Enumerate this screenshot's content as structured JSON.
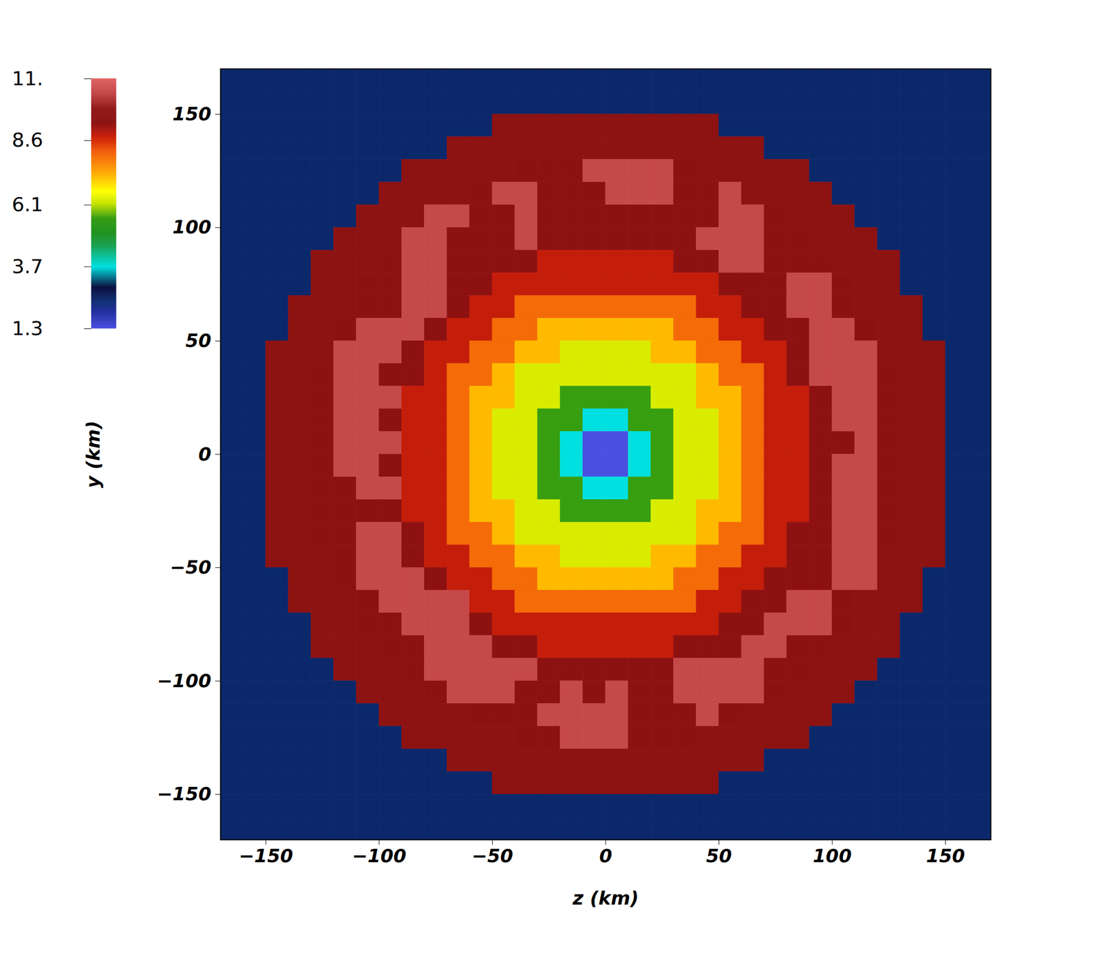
{
  "chart_data": {
    "type": "heatmap",
    "x_label": "z (km)",
    "y_label": "y (km)",
    "xlim": [
      -170,
      170
    ],
    "ylim": [
      -170,
      170
    ],
    "xticks": [
      -150,
      -100,
      -50,
      0,
      50,
      100,
      150
    ],
    "yticks": [
      -150,
      -100,
      -50,
      0,
      50,
      100,
      150
    ],
    "x": [
      -165,
      -155,
      -145,
      -135,
      -125,
      -115,
      -105,
      -95,
      -85,
      -75,
      -65,
      -55,
      -45,
      -35,
      -25,
      -15,
      -5,
      5,
      15,
      25,
      35,
      45,
      55,
      65,
      75,
      85,
      95,
      105,
      115,
      125,
      135,
      145,
      155,
      165
    ],
    "y": [
      165,
      155,
      145,
      135,
      125,
      115,
      105,
      95,
      85,
      75,
      65,
      55,
      45,
      35,
      25,
      15,
      5,
      -5,
      -15,
      -25,
      -35,
      -45,
      -55,
      -65,
      -75,
      -85,
      -95,
      -105,
      -115,
      -125,
      -135,
      -145,
      -155,
      -165
    ],
    "values": [
      [
        2.4,
        2.4,
        2.4,
        2.4,
        2.4,
        2.4,
        2.4,
        2.4,
        2.4,
        2.4,
        2.4,
        2.4,
        2.4,
        2.4,
        2.4,
        2.4,
        2.4,
        2.4,
        2.4,
        2.4,
        2.4,
        2.4,
        2.4,
        2.4,
        2.4,
        2.4,
        2.4,
        2.4,
        2.4,
        2.4,
        2.4,
        2.4,
        2.4,
        2.4
      ],
      [
        2.4,
        2.4,
        2.4,
        2.4,
        2.4,
        2.4,
        2.4,
        2.4,
        2.4,
        2.4,
        2.4,
        2.4,
        2.4,
        2.4,
        2.4,
        2.4,
        2.4,
        2.4,
        2.4,
        2.4,
        2.4,
        2.4,
        2.4,
        2.4,
        2.4,
        2.4,
        2.4,
        2.4,
        2.4,
        2.4,
        2.4,
        2.4,
        2.4,
        2.4
      ],
      [
        2.4,
        2.4,
        2.4,
        2.4,
        2.4,
        2.4,
        2.4,
        2.4,
        2.4,
        2.4,
        2.4,
        2.4,
        9.6,
        9.6,
        9.6,
        9.6,
        9.6,
        9.6,
        9.6,
        9.6,
        9.6,
        9.6,
        2.4,
        2.4,
        2.4,
        2.4,
        2.4,
        2.4,
        2.4,
        2.4,
        2.4,
        2.4,
        2.4,
        2.4
      ],
      [
        2.4,
        2.4,
        2.4,
        2.4,
        2.4,
        2.4,
        2.4,
        2.4,
        2.4,
        2.4,
        9.6,
        9.6,
        9.6,
        9.6,
        9.6,
        9.6,
        9.6,
        9.6,
        9.6,
        9.6,
        9.6,
        9.6,
        9.6,
        9.6,
        2.4,
        2.4,
        2.4,
        2.4,
        2.4,
        2.4,
        2.4,
        2.4,
        2.4,
        2.4
      ],
      [
        2.4,
        2.4,
        2.4,
        2.4,
        2.4,
        2.4,
        2.4,
        2.4,
        9.6,
        9.6,
        9.6,
        9.6,
        9.6,
        9.5,
        9.5,
        9.5,
        10.5,
        10.5,
        10.5,
        10.5,
        9.5,
        9.6,
        9.6,
        9.6,
        9.6,
        9.6,
        2.4,
        2.4,
        2.4,
        2.4,
        2.4,
        2.4,
        2.4,
        2.4
      ],
      [
        2.4,
        2.4,
        2.4,
        2.4,
        2.4,
        2.4,
        2.4,
        9.6,
        9.6,
        9.6,
        9.6,
        9.5,
        10.5,
        10.5,
        9.5,
        9.5,
        9.5,
        10.5,
        10.5,
        10.5,
        9.5,
        9.5,
        10.5,
        9.6,
        9.6,
        9.6,
        9.6,
        2.4,
        2.4,
        2.4,
        2.4,
        2.4,
        2.4,
        2.4
      ],
      [
        2.4,
        2.4,
        2.4,
        2.4,
        2.4,
        2.4,
        9.6,
        9.6,
        9.6,
        10.5,
        10.5,
        9.5,
        9.5,
        10.5,
        9.5,
        9.5,
        9.5,
        9.5,
        9.5,
        9.5,
        9.5,
        9.5,
        10.5,
        10.5,
        9.5,
        9.6,
        9.6,
        9.6,
        2.4,
        2.4,
        2.4,
        2.4,
        2.4,
        2.4
      ],
      [
        2.4,
        2.4,
        2.4,
        2.4,
        2.4,
        9.6,
        9.6,
        9.6,
        10.5,
        10.5,
        9.5,
        9.5,
        9.5,
        10.5,
        9.5,
        9.5,
        9.5,
        9.5,
        9.5,
        9.5,
        9.5,
        10.5,
        10.5,
        10.5,
        9.5,
        9.5,
        9.6,
        9.6,
        9.6,
        2.4,
        2.4,
        2.4,
        2.4,
        2.4
      ],
      [
        2.4,
        2.4,
        2.4,
        2.4,
        9.6,
        9.6,
        9.6,
        9.5,
        10.5,
        10.5,
        9.5,
        9.5,
        9.5,
        9.5,
        8.8,
        8.8,
        8.8,
        8.8,
        8.8,
        8.8,
        9.5,
        9.5,
        10.5,
        10.5,
        9.5,
        9.5,
        9.5,
        9.6,
        9.6,
        9.6,
        2.4,
        2.4,
        2.4,
        2.4
      ],
      [
        2.4,
        2.4,
        2.4,
        2.4,
        9.6,
        9.6,
        9.5,
        9.5,
        10.5,
        10.5,
        9.5,
        9.5,
        8.8,
        8.8,
        8.8,
        8.8,
        8.8,
        8.8,
        8.8,
        8.8,
        8.8,
        8.8,
        9.5,
        9.5,
        9.5,
        10.5,
        10.5,
        9.5,
        9.6,
        9.6,
        2.4,
        2.4,
        2.4,
        2.4
      ],
      [
        2.4,
        2.4,
        2.4,
        9.6,
        9.6,
        9.6,
        9.5,
        9.5,
        10.5,
        10.5,
        9.5,
        8.8,
        8.8,
        8.0,
        8.0,
        8.0,
        8.0,
        8.0,
        8.0,
        8.0,
        8.0,
        8.8,
        8.8,
        9.5,
        9.5,
        10.5,
        10.5,
        9.5,
        9.6,
        9.6,
        9.6,
        2.4,
        2.4,
        2.4
      ],
      [
        2.4,
        2.4,
        2.4,
        9.6,
        9.6,
        9.5,
        10.5,
        10.5,
        10.5,
        9.5,
        8.8,
        8.8,
        8.0,
        8.0,
        7.2,
        7.2,
        7.2,
        7.2,
        7.2,
        7.2,
        8.0,
        8.0,
        8.8,
        8.8,
        9.5,
        9.5,
        10.5,
        10.5,
        9.5,
        9.6,
        9.6,
        2.4,
        2.4,
        2.4
      ],
      [
        2.4,
        2.4,
        9.6,
        9.6,
        9.6,
        10.5,
        10.5,
        10.5,
        9.5,
        8.8,
        8.8,
        8.0,
        8.0,
        7.2,
        7.2,
        6.3,
        6.3,
        6.3,
        6.3,
        7.2,
        7.2,
        8.0,
        8.0,
        8.8,
        8.8,
        9.5,
        10.5,
        10.5,
        10.5,
        9.6,
        9.6,
        9.6,
        2.4,
        2.4
      ],
      [
        2.4,
        2.4,
        9.6,
        9.6,
        9.5,
        10.5,
        10.5,
        9.5,
        9.5,
        8.8,
        8.0,
        8.0,
        7.2,
        6.3,
        6.3,
        6.3,
        6.3,
        6.3,
        6.3,
        6.3,
        6.3,
        7.2,
        8.0,
        8.0,
        8.8,
        9.5,
        10.5,
        10.5,
        10.5,
        9.5,
        9.6,
        9.6,
        2.4,
        2.4
      ],
      [
        2.4,
        2.4,
        9.6,
        9.6,
        9.5,
        10.5,
        10.5,
        10.5,
        8.8,
        8.8,
        8.0,
        7.2,
        7.2,
        6.3,
        6.3,
        5.6,
        5.6,
        5.6,
        5.6,
        6.3,
        6.3,
        7.2,
        7.2,
        8.0,
        8.8,
        8.8,
        9.5,
        10.5,
        10.5,
        9.5,
        9.6,
        9.6,
        2.4,
        2.4
      ],
      [
        2.4,
        2.4,
        9.6,
        9.6,
        9.5,
        10.5,
        10.5,
        9.5,
        8.8,
        8.8,
        8.0,
        7.2,
        6.3,
        6.3,
        5.6,
        5.6,
        3.7,
        3.7,
        5.6,
        5.6,
        6.3,
        6.3,
        7.2,
        8.0,
        8.8,
        8.8,
        9.5,
        10.5,
        10.5,
        9.5,
        9.6,
        9.6,
        2.4,
        2.4
      ],
      [
        2.4,
        2.4,
        9.6,
        9.6,
        9.5,
        10.5,
        10.5,
        10.5,
        8.8,
        8.8,
        8.0,
        7.2,
        6.3,
        6.3,
        5.6,
        3.7,
        1.3,
        1.3,
        3.7,
        5.6,
        6.3,
        6.3,
        7.2,
        8.0,
        8.8,
        8.8,
        9.5,
        9.5,
        10.5,
        9.5,
        9.6,
        9.6,
        2.4,
        2.4
      ],
      [
        2.4,
        2.4,
        9.6,
        9.6,
        9.5,
        10.5,
        10.5,
        9.5,
        8.8,
        8.8,
        8.0,
        7.2,
        6.3,
        6.3,
        5.6,
        3.7,
        1.3,
        1.3,
        3.7,
        5.6,
        6.3,
        6.3,
        7.2,
        8.0,
        8.8,
        8.8,
        9.5,
        10.5,
        10.5,
        9.5,
        9.6,
        9.6,
        2.4,
        2.4
      ],
      [
        2.4,
        2.4,
        9.6,
        9.6,
        9.5,
        9.5,
        10.5,
        10.5,
        8.8,
        8.8,
        8.0,
        7.2,
        6.3,
        6.3,
        5.6,
        5.6,
        3.7,
        3.7,
        5.6,
        5.6,
        6.3,
        6.3,
        7.2,
        8.0,
        8.8,
        8.8,
        9.5,
        10.5,
        10.5,
        9.5,
        9.6,
        9.6,
        2.4,
        2.4
      ],
      [
        2.4,
        2.4,
        9.6,
        9.6,
        9.5,
        9.5,
        9.5,
        9.5,
        8.8,
        8.8,
        8.0,
        7.2,
        7.2,
        6.3,
        6.3,
        5.6,
        5.6,
        5.6,
        5.6,
        6.3,
        6.3,
        7.2,
        7.2,
        8.0,
        8.8,
        8.8,
        9.5,
        10.5,
        10.5,
        9.5,
        9.6,
        9.6,
        2.4,
        2.4
      ],
      [
        2.4,
        2.4,
        9.6,
        9.6,
        9.5,
        9.5,
        10.5,
        10.5,
        9.5,
        8.8,
        8.0,
        8.0,
        7.2,
        6.3,
        6.3,
        6.3,
        6.3,
        6.3,
        6.3,
        6.3,
        6.3,
        7.2,
        8.0,
        8.0,
        8.8,
        9.5,
        9.5,
        10.5,
        10.5,
        9.5,
        9.6,
        9.6,
        2.4,
        2.4
      ],
      [
        2.4,
        2.4,
        9.6,
        9.6,
        9.6,
        9.5,
        10.5,
        10.5,
        9.5,
        8.8,
        8.8,
        8.0,
        8.0,
        7.2,
        7.2,
        6.3,
        6.3,
        6.3,
        6.3,
        7.2,
        7.2,
        8.0,
        8.0,
        8.8,
        8.8,
        9.5,
        9.5,
        10.5,
        10.5,
        9.6,
        9.6,
        9.6,
        2.4,
        2.4
      ],
      [
        2.4,
        2.4,
        2.4,
        9.6,
        9.6,
        9.5,
        10.5,
        10.5,
        10.5,
        9.5,
        8.8,
        8.8,
        8.0,
        8.0,
        7.2,
        7.2,
        7.2,
        7.2,
        7.2,
        7.2,
        8.0,
        8.0,
        8.8,
        8.8,
        9.5,
        9.5,
        9.5,
        10.5,
        10.5,
        9.6,
        9.6,
        2.4,
        2.4,
        2.4
      ],
      [
        2.4,
        2.4,
        2.4,
        9.6,
        9.6,
        9.6,
        9.5,
        10.5,
        10.5,
        10.5,
        10.5,
        8.8,
        8.8,
        8.0,
        8.0,
        8.0,
        8.0,
        8.0,
        8.0,
        8.0,
        8.0,
        8.8,
        8.8,
        9.5,
        9.5,
        10.5,
        10.5,
        9.5,
        9.6,
        9.6,
        9.6,
        2.4,
        2.4,
        2.4
      ],
      [
        2.4,
        2.4,
        2.4,
        2.4,
        9.6,
        9.6,
        9.5,
        9.5,
        10.5,
        10.5,
        10.5,
        9.5,
        8.8,
        8.8,
        8.8,
        8.8,
        8.8,
        8.8,
        8.8,
        8.8,
        8.8,
        8.8,
        9.5,
        9.5,
        10.5,
        10.5,
        10.5,
        9.5,
        9.6,
        9.6,
        2.4,
        2.4,
        2.4,
        2.4
      ],
      [
        2.4,
        2.4,
        2.4,
        2.4,
        9.6,
        9.6,
        9.6,
        9.5,
        9.5,
        10.5,
        10.5,
        10.5,
        9.5,
        9.5,
        8.8,
        8.8,
        8.8,
        8.8,
        8.8,
        8.8,
        9.5,
        9.5,
        9.5,
        10.5,
        10.5,
        9.5,
        9.5,
        9.6,
        9.6,
        9.6,
        2.4,
        2.4,
        2.4,
        2.4
      ],
      [
        2.4,
        2.4,
        2.4,
        2.4,
        2.4,
        9.6,
        9.6,
        9.6,
        9.5,
        10.5,
        10.5,
        10.5,
        10.5,
        10.5,
        9.5,
        9.5,
        9.5,
        9.5,
        9.5,
        9.5,
        10.5,
        10.5,
        10.5,
        10.5,
        9.5,
        9.5,
        9.6,
        9.6,
        9.6,
        2.4,
        2.4,
        2.4,
        2.4,
        2.4
      ],
      [
        2.4,
        2.4,
        2.4,
        2.4,
        2.4,
        2.4,
        9.6,
        9.6,
        9.6,
        9.5,
        10.5,
        10.5,
        10.5,
        9.5,
        9.5,
        10.5,
        9.5,
        10.5,
        9.5,
        9.5,
        10.5,
        10.5,
        10.5,
        10.5,
        9.5,
        9.6,
        9.6,
        9.6,
        2.4,
        2.4,
        2.4,
        2.4,
        2.4,
        2.4
      ],
      [
        2.4,
        2.4,
        2.4,
        2.4,
        2.4,
        2.4,
        2.4,
        9.6,
        9.6,
        9.6,
        9.6,
        9.5,
        9.5,
        9.5,
        10.5,
        10.5,
        10.5,
        10.5,
        9.5,
        9.5,
        9.5,
        10.5,
        9.5,
        9.6,
        9.6,
        9.6,
        9.6,
        2.4,
        2.4,
        2.4,
        2.4,
        2.4,
        2.4,
        2.4
      ],
      [
        2.4,
        2.4,
        2.4,
        2.4,
        2.4,
        2.4,
        2.4,
        2.4,
        9.6,
        9.6,
        9.6,
        9.6,
        9.6,
        9.5,
        9.5,
        10.5,
        10.5,
        10.5,
        9.5,
        9.5,
        9.5,
        9.6,
        9.6,
        9.6,
        9.6,
        9.6,
        2.4,
        2.4,
        2.4,
        2.4,
        2.4,
        2.4,
        2.4,
        2.4
      ],
      [
        2.4,
        2.4,
        2.4,
        2.4,
        2.4,
        2.4,
        2.4,
        2.4,
        2.4,
        2.4,
        9.6,
        9.6,
        9.6,
        9.6,
        9.6,
        9.6,
        9.6,
        9.6,
        9.6,
        9.6,
        9.6,
        9.6,
        9.6,
        9.6,
        2.4,
        2.4,
        2.4,
        2.4,
        2.4,
        2.4,
        2.4,
        2.4,
        2.4,
        2.4
      ],
      [
        2.4,
        2.4,
        2.4,
        2.4,
        2.4,
        2.4,
        2.4,
        2.4,
        2.4,
        2.4,
        2.4,
        2.4,
        9.6,
        9.6,
        9.6,
        9.6,
        9.6,
        9.6,
        9.6,
        9.6,
        9.6,
        9.6,
        2.4,
        2.4,
        2.4,
        2.4,
        2.4,
        2.4,
        2.4,
        2.4,
        2.4,
        2.4,
        2.4,
        2.4
      ],
      [
        2.4,
        2.4,
        2.4,
        2.4,
        2.4,
        2.4,
        2.4,
        2.4,
        2.4,
        2.4,
        2.4,
        2.4,
        2.4,
        2.4,
        2.4,
        2.4,
        2.4,
        2.4,
        2.4,
        2.4,
        2.4,
        2.4,
        2.4,
        2.4,
        2.4,
        2.4,
        2.4,
        2.4,
        2.4,
        2.4,
        2.4,
        2.4,
        2.4,
        2.4
      ],
      [
        2.4,
        2.4,
        2.4,
        2.4,
        2.4,
        2.4,
        2.4,
        2.4,
        2.4,
        2.4,
        2.4,
        2.4,
        2.4,
        2.4,
        2.4,
        2.4,
        2.4,
        2.4,
        2.4,
        2.4,
        2.4,
        2.4,
        2.4,
        2.4,
        2.4,
        2.4,
        2.4,
        2.4,
        2.4,
        2.4,
        2.4,
        2.4,
        2.4,
        2.4
      ]
    ],
    "colorbar_range": [
      1.3,
      11
    ],
    "colorbar_ticks": [
      {
        "value": 11,
        "label": "11."
      },
      8.6,
      6.1,
      3.7,
      1.3
    ]
  }
}
